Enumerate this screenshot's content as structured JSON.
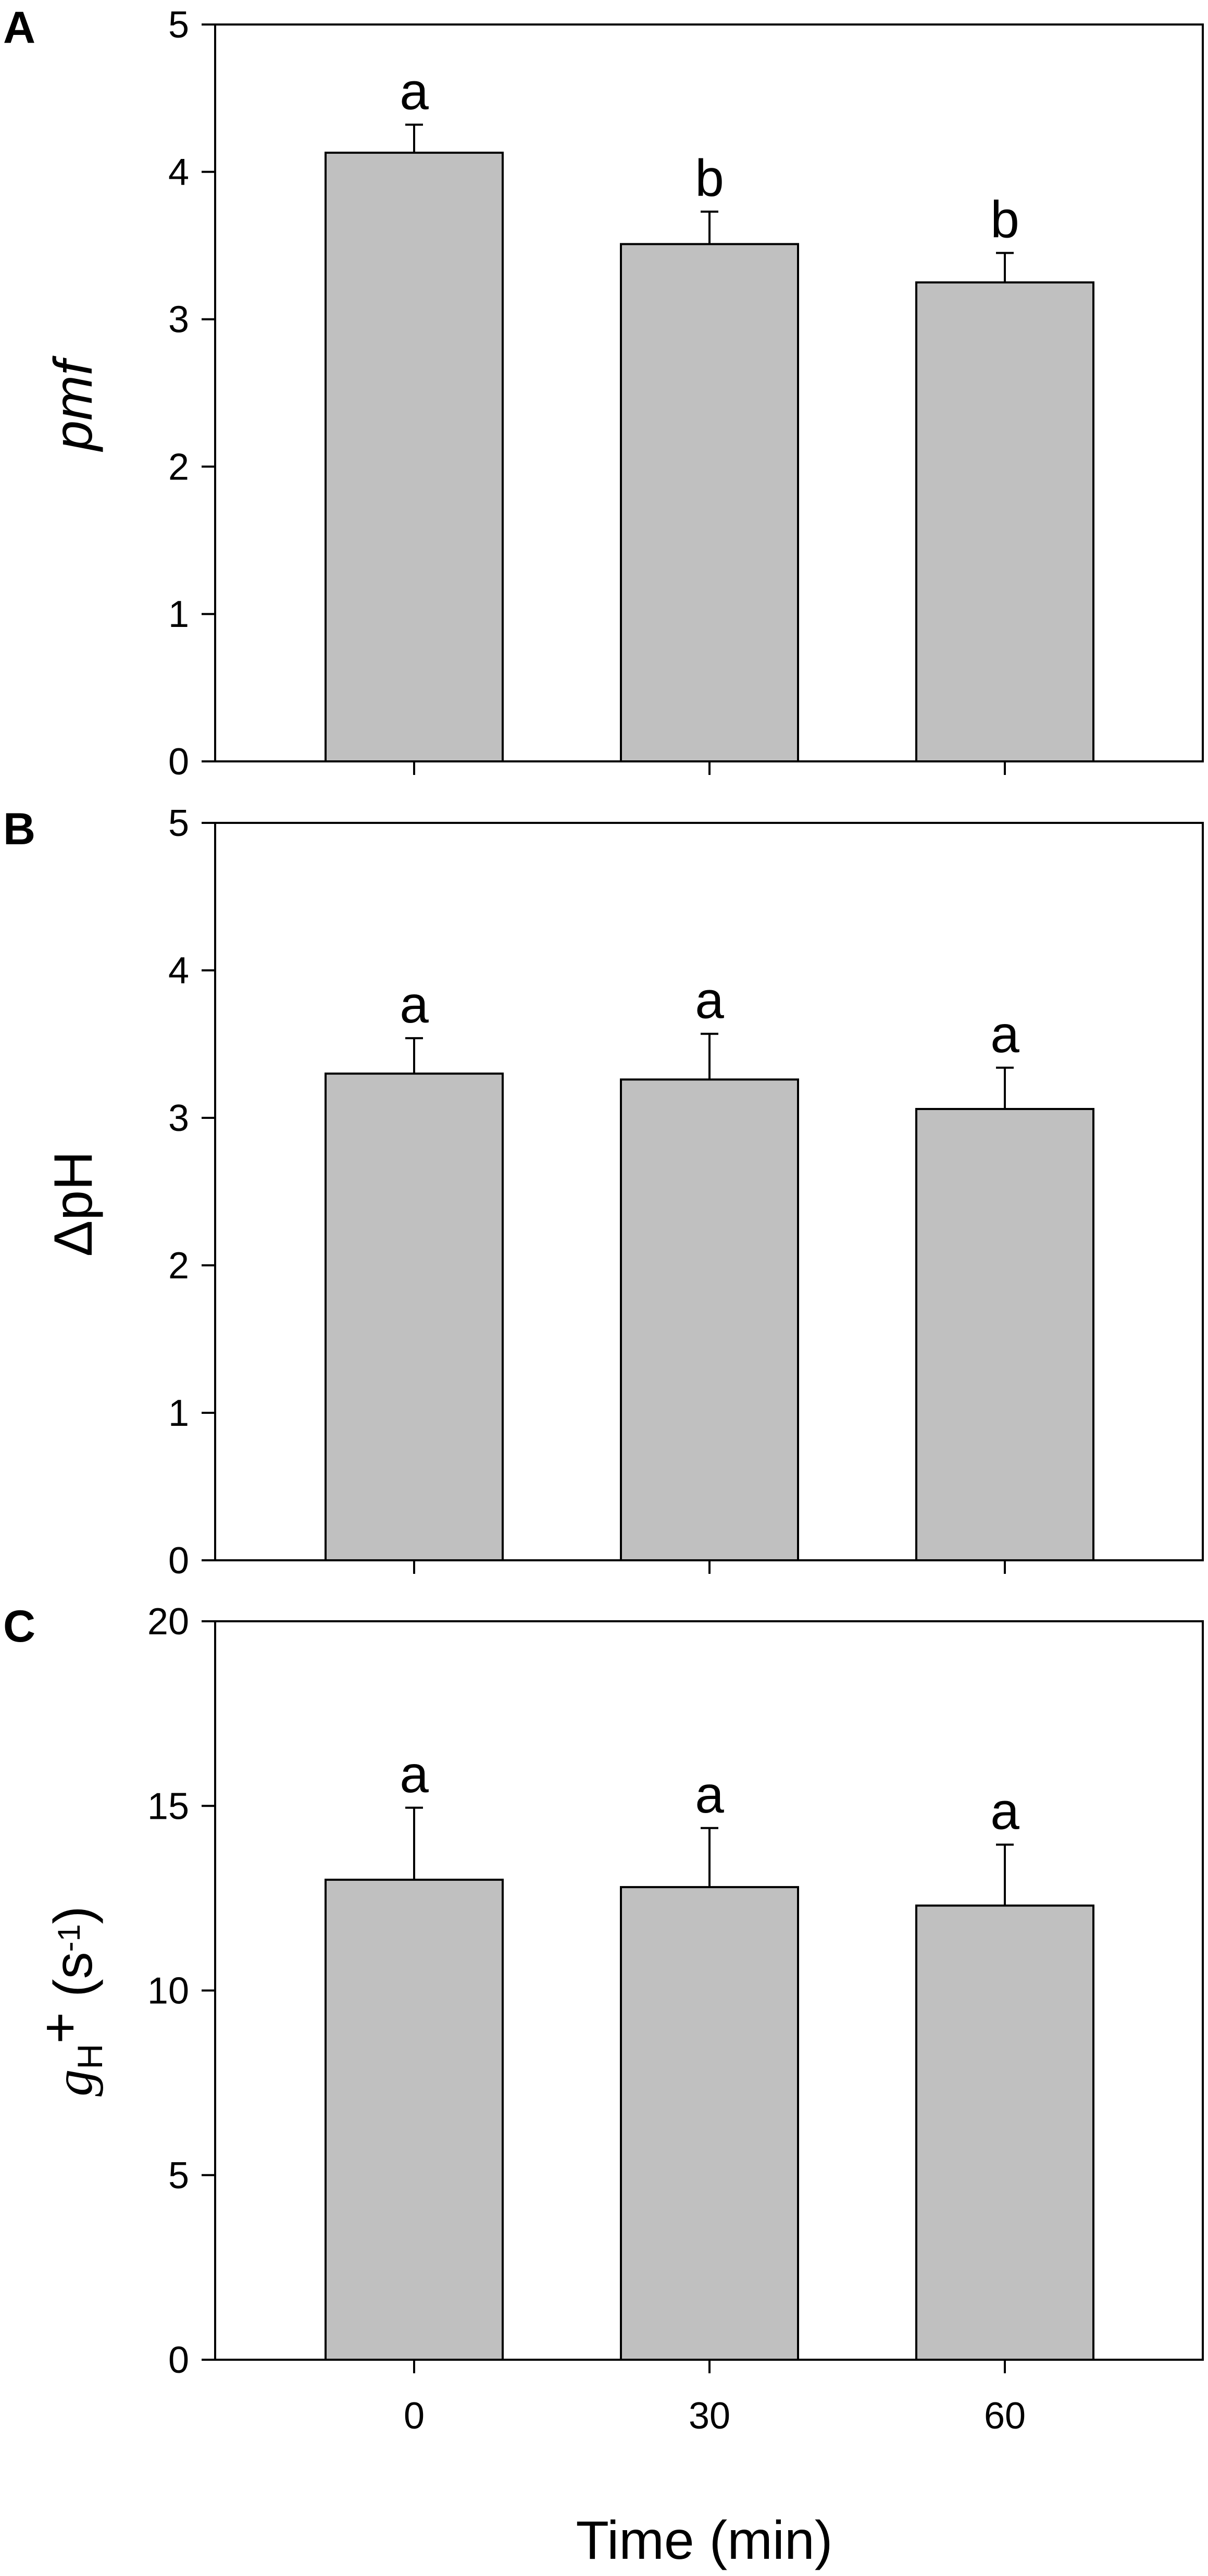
{
  "chart_data": [
    {
      "type": "bar",
      "panel": "A",
      "categories": [
        "0",
        "30",
        "60"
      ],
      "values": [
        4.13,
        3.51,
        3.25
      ],
      "errors": [
        0.19,
        0.22,
        0.2
      ],
      "significance": [
        "a",
        "b",
        "b"
      ],
      "ylabel": "pmf",
      "ylim": [
        0,
        5
      ],
      "yticks": [
        "0",
        "1",
        "2",
        "3",
        "4",
        "5"
      ],
      "show_xticklabels": false,
      "bar_color": "#c0c0c0"
    },
    {
      "type": "bar",
      "panel": "B",
      "categories": [
        "0",
        "30",
        "60"
      ],
      "values": [
        3.3,
        3.26,
        3.06
      ],
      "errors": [
        0.24,
        0.31,
        0.28
      ],
      "significance": [
        "a",
        "a",
        "a"
      ],
      "ylabel": "ΔpH",
      "ylim": [
        0,
        5
      ],
      "yticks": [
        "0",
        "1",
        "2",
        "3",
        "4",
        "5"
      ],
      "show_xticklabels": false,
      "bar_color": "#c0c0c0"
    },
    {
      "type": "bar",
      "panel": "C",
      "categories": [
        "0",
        "30",
        "60"
      ],
      "values": [
        13.0,
        12.8,
        12.3
      ],
      "errors": [
        1.95,
        1.6,
        1.65
      ],
      "significance": [
        "a",
        "a",
        "a"
      ],
      "ylabel_parts": {
        "main": "g",
        "sub": "H",
        "plus": "+",
        "unit_open": " (s",
        "unit_sup": "-1",
        "unit_close": ")"
      },
      "ylim": [
        0,
        20
      ],
      "yticks": [
        "0",
        "5",
        "10",
        "15",
        "20"
      ],
      "show_xticklabels": true,
      "xlabel": "Time (min)",
      "bar_color": "#c0c0c0"
    }
  ]
}
